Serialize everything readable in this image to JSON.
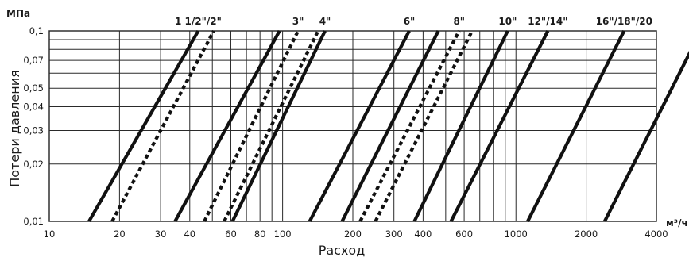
{
  "chart_data": {
    "type": "line",
    "ylabel": "Потери давления",
    "xlabel": "Расход",
    "y_unit": "МПа",
    "x_unit": "м³/ч",
    "x_scale": "log",
    "y_scale": "log",
    "xlim": [
      10,
      4000
    ],
    "ylim": [
      0.01,
      0.1
    ],
    "x_major_ticks": [
      10,
      20,
      30,
      40,
      60,
      80,
      100,
      200,
      300,
      400,
      600,
      1000,
      2000,
      4000
    ],
    "x_minor_grid": [
      50,
      70,
      90,
      500,
      700,
      800,
      900
    ],
    "y_ticks": [
      0.01,
      0.02,
      0.03,
      0.04,
      0.05,
      0.07,
      0.1
    ],
    "y_minor_grid": [
      0.06,
      0.08,
      0.09
    ],
    "x_tick_labels": [
      "10",
      "20",
      "30",
      "40",
      "60",
      "80",
      "100",
      "200",
      "300",
      "400",
      "600",
      "1000",
      "2000",
      "4000"
    ],
    "y_tick_labels": [
      "0,01",
      "0,02",
      "0,03",
      "0,04",
      "0,05",
      "0,07",
      "0,1"
    ],
    "grid": true,
    "series": [
      {
        "name": "1 1/2\"/2\"",
        "style": "solid",
        "points": [
          {
            "x": 14.8,
            "y": 0.01
          },
          {
            "x": 43.5,
            "y": 0.1
          }
        ]
      },
      {
        "name": "",
        "style": "dashed",
        "points": [
          {
            "x": 18.6,
            "y": 0.01
          },
          {
            "x": 50.7,
            "y": 0.1
          }
        ]
      },
      {
        "name": "",
        "style": "solid",
        "points": [
          {
            "x": 34.6,
            "y": 0.01
          },
          {
            "x": 97.0,
            "y": 0.1
          }
        ]
      },
      {
        "name": "3\"",
        "style": "dashed",
        "points": [
          {
            "x": 46.2,
            "y": 0.01
          },
          {
            "x": 116.5,
            "y": 0.1
          }
        ]
      },
      {
        "name": "",
        "style": "dashed",
        "points": [
          {
            "x": 56.2,
            "y": 0.01
          },
          {
            "x": 142.0,
            "y": 0.1
          }
        ]
      },
      {
        "name": "4\"",
        "style": "solid",
        "points": [
          {
            "x": 61.0,
            "y": 0.01
          },
          {
            "x": 152.0,
            "y": 0.1
          }
        ]
      },
      {
        "name": "",
        "style": "solid",
        "points": [
          {
            "x": 130.6,
            "y": 0.01
          },
          {
            "x": 349.0,
            "y": 0.1
          }
        ]
      },
      {
        "name": "",
        "style": "solid",
        "points": [
          {
            "x": 179.9,
            "y": 0.01
          },
          {
            "x": 465.0,
            "y": 0.1
          }
        ]
      },
      {
        "name": "6\"",
        "style": "dashed",
        "points": [
          {
            "x": 215.0,
            "y": 0.01
          },
          {
            "x": 571.0,
            "y": 0.1
          }
        ]
      },
      {
        "name": "",
        "style": "dashed",
        "points": [
          {
            "x": 250.0,
            "y": 0.01
          },
          {
            "x": 649.0,
            "y": 0.1
          }
        ]
      },
      {
        "name": "8\"",
        "style": "solid",
        "points": [
          {
            "x": 367.0,
            "y": 0.01
          },
          {
            "x": 922.0,
            "y": 0.1
          }
        ]
      },
      {
        "name": "10\"",
        "style": "solid",
        "points": [
          {
            "x": 527.0,
            "y": 0.01
          },
          {
            "x": 1370.0,
            "y": 0.1
          }
        ]
      },
      {
        "name": "12\"/14\"",
        "style": "solid",
        "points": [
          {
            "x": 1123.0,
            "y": 0.01
          },
          {
            "x": 2907.0,
            "y": 0.1
          }
        ]
      },
      {
        "name": "16\"/18\"/20",
        "style": "solid",
        "points": [
          {
            "x": 2400.0,
            "y": 0.01
          },
          {
            "x": 6200.0,
            "y": 0.1
          }
        ]
      }
    ],
    "top_labels": [
      {
        "text": "1 1/2\"/2\"",
        "x": 43.5
      },
      {
        "text": "3\"",
        "x": 116.5
      },
      {
        "text": "4\"",
        "x": 152.0
      },
      {
        "text": "6\"",
        "x": 349.0
      },
      {
        "text": "8\"",
        "x": 571.0
      },
      {
        "text": "10\"",
        "x": 922.0
      },
      {
        "text": "12\"/14\"",
        "x": 1370.0
      },
      {
        "text": "16\"/18\"/20",
        "x": 2907.0
      }
    ]
  }
}
